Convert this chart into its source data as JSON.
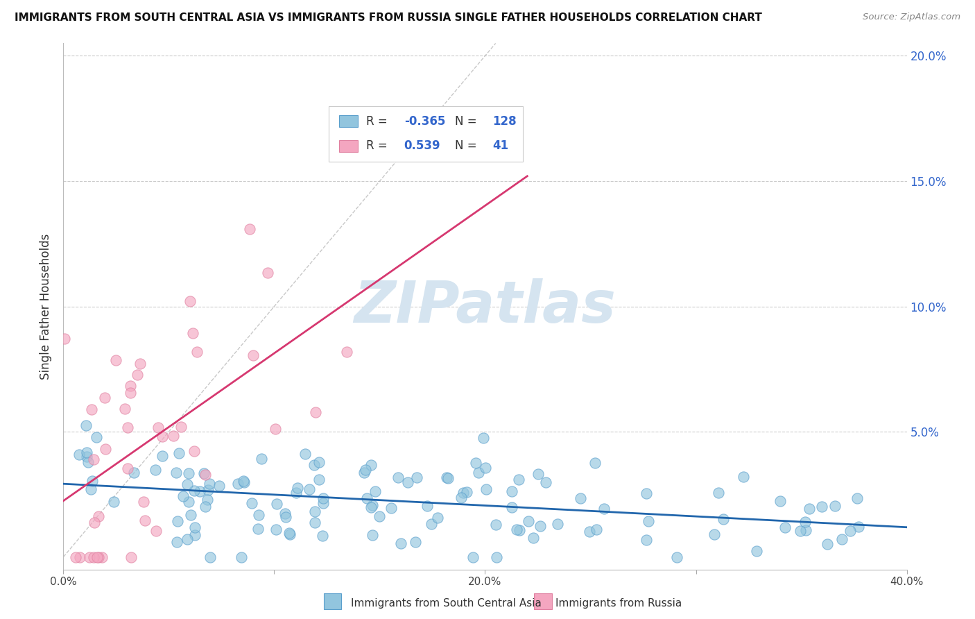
{
  "title": "IMMIGRANTS FROM SOUTH CENTRAL ASIA VS IMMIGRANTS FROM RUSSIA SINGLE FATHER HOUSEHOLDS CORRELATION CHART",
  "source": "Source: ZipAtlas.com",
  "ylabel": "Single Father Households",
  "xlabel_blue": "Immigrants from South Central Asia",
  "xlabel_pink": "Immigrants from Russia",
  "xmin": 0.0,
  "xmax": 0.4,
  "ymin": -0.005,
  "ymax": 0.205,
  "yticks": [
    0.0,
    0.05,
    0.1,
    0.15,
    0.2
  ],
  "ytick_labels": [
    "",
    "5.0%",
    "10.0%",
    "15.0%",
    "20.0%"
  ],
  "xticks": [
    0.0,
    0.1,
    0.2,
    0.3,
    0.4
  ],
  "xtick_labels": [
    "0.0%",
    "",
    "20.0%",
    "",
    "40.0%"
  ],
  "R_blue": -0.365,
  "N_blue": 128,
  "R_pink": 0.539,
  "N_pink": 41,
  "blue_color": "#92c5de",
  "pink_color": "#f4a6c0",
  "blue_line_color": "#2166ac",
  "pink_line_color": "#d63870",
  "watermark_color": "#d5e4f0",
  "grid_color": "#cccccc",
  "background_color": "#ffffff"
}
